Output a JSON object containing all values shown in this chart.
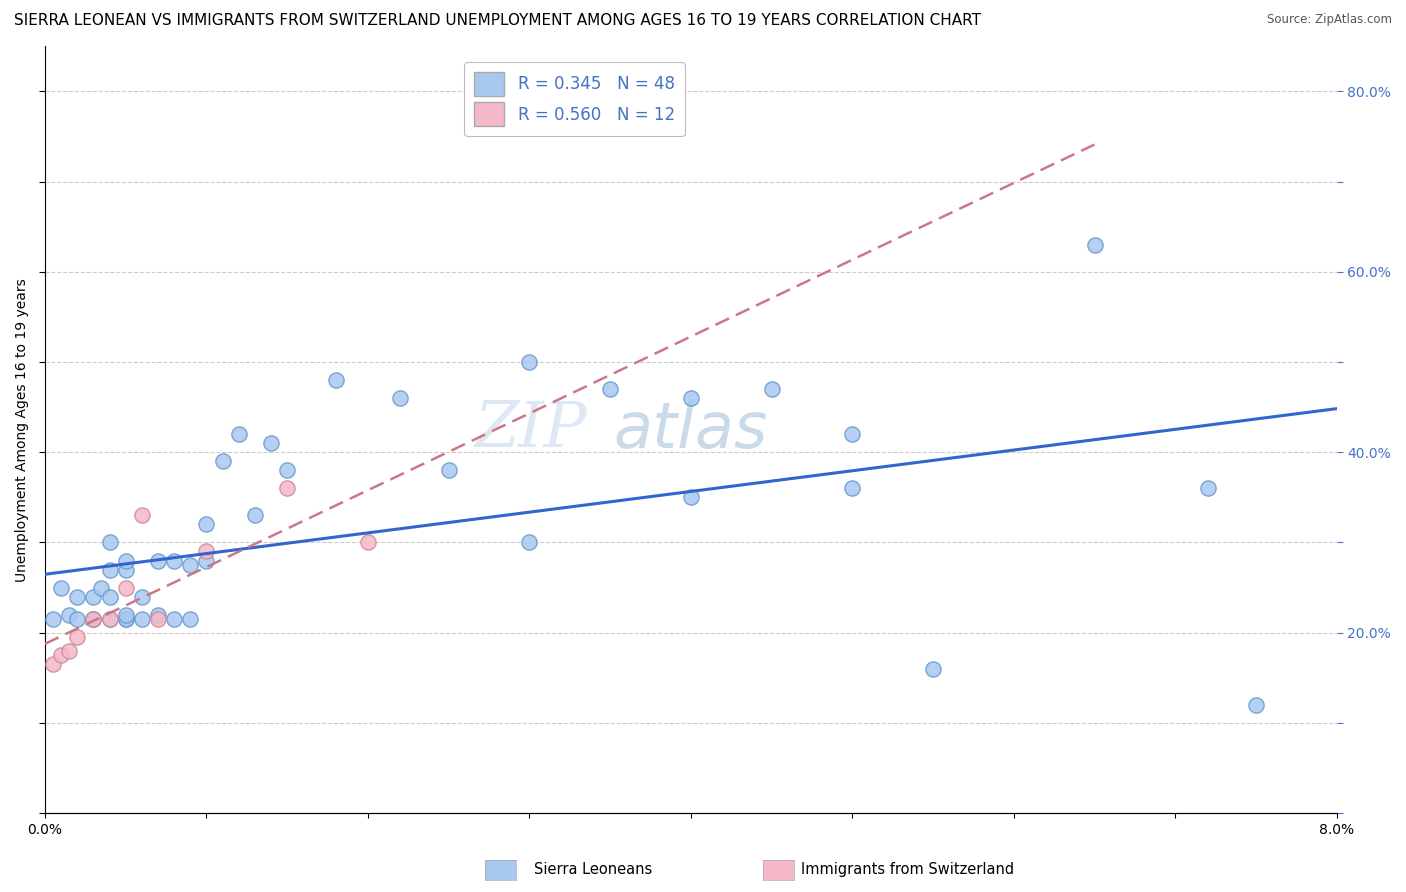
{
  "title": "SIERRA LEONEAN VS IMMIGRANTS FROM SWITZERLAND UNEMPLOYMENT AMONG AGES 16 TO 19 YEARS CORRELATION CHART",
  "source": "Source: ZipAtlas.com",
  "ylabel": "Unemployment Among Ages 16 to 19 years",
  "x_label_bottom": "Sierra Leoneans",
  "x_label_bottom2": "Immigrants from Switzerland",
  "xlim": [
    0.0,
    0.08
  ],
  "ylim": [
    0.0,
    0.85
  ],
  "x_ticks": [
    0.0,
    0.01,
    0.02,
    0.03,
    0.04,
    0.05,
    0.06,
    0.07,
    0.08
  ],
  "y_ticks": [
    0.0,
    0.1,
    0.2,
    0.3,
    0.4,
    0.5,
    0.6,
    0.7,
    0.8
  ],
  "y_tick_labels_right": [
    "",
    "",
    "20.0%",
    "",
    "40.0%",
    "",
    "60.0%",
    "",
    "80.0%"
  ],
  "sierra_x": [
    0.0005,
    0.001,
    0.0015,
    0.002,
    0.002,
    0.003,
    0.003,
    0.003,
    0.0035,
    0.004,
    0.004,
    0.004,
    0.004,
    0.005,
    0.005,
    0.005,
    0.005,
    0.005,
    0.006,
    0.006,
    0.007,
    0.007,
    0.008,
    0.008,
    0.009,
    0.009,
    0.01,
    0.01,
    0.011,
    0.012,
    0.013,
    0.014,
    0.015,
    0.018,
    0.022,
    0.025,
    0.03,
    0.035,
    0.04,
    0.05,
    0.055,
    0.03,
    0.04,
    0.045,
    0.05,
    0.065,
    0.072,
    0.075
  ],
  "sierra_y": [
    0.215,
    0.25,
    0.22,
    0.215,
    0.24,
    0.215,
    0.215,
    0.24,
    0.25,
    0.215,
    0.24,
    0.27,
    0.3,
    0.215,
    0.215,
    0.22,
    0.27,
    0.28,
    0.215,
    0.24,
    0.22,
    0.28,
    0.215,
    0.28,
    0.215,
    0.275,
    0.28,
    0.32,
    0.39,
    0.42,
    0.33,
    0.41,
    0.38,
    0.48,
    0.46,
    0.38,
    0.5,
    0.47,
    0.46,
    0.42,
    0.16,
    0.3,
    0.35,
    0.47,
    0.36,
    0.63,
    0.36,
    0.12
  ],
  "swiss_x": [
    0.0005,
    0.001,
    0.0015,
    0.002,
    0.003,
    0.004,
    0.005,
    0.006,
    0.007,
    0.01,
    0.015,
    0.02
  ],
  "swiss_y": [
    0.165,
    0.175,
    0.18,
    0.195,
    0.215,
    0.215,
    0.25,
    0.33,
    0.215,
    0.29,
    0.36,
    0.3
  ],
  "sierra_color": "#a8c8f0",
  "swiss_color": "#f5b8c8",
  "sierra_edge_color": "#6699cc",
  "swiss_edge_color": "#cc8899",
  "sierra_line_color": "#3366cc",
  "swiss_line_color": "#cc7788",
  "watermark_top": "ZIP",
  "watermark_bot": "atlas",
  "legend_R1": "R = 0.345",
  "legend_N1": "N = 48",
  "legend_R2": "R = 0.560",
  "legend_N2": "N = 12",
  "grid_color": "#cccccc",
  "background_color": "#ffffff",
  "title_fontsize": 11,
  "axis_label_fontsize": 10,
  "tick_fontsize": 10,
  "right_tick_color": "#4472c4"
}
